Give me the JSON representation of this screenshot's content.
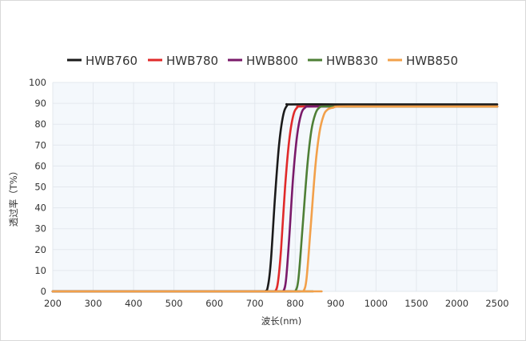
{
  "chart_data": {
    "type": "line",
    "title": "",
    "xlabel": "波长(nm)",
    "ylabel": "透过率（T%）",
    "x_ticks": [
      "200",
      "300",
      "400",
      "500",
      "600",
      "700",
      "800",
      "900",
      "1000",
      "1500",
      "2000",
      "2500"
    ],
    "x_tick_values": [
      200,
      300,
      400,
      500,
      600,
      700,
      800,
      900,
      1000,
      1500,
      2000,
      2500
    ],
    "y_ticks": [
      "0",
      "10",
      "20",
      "30",
      "40",
      "50",
      "60",
      "70",
      "80",
      "90",
      "100"
    ],
    "ylim": [
      0,
      100
    ],
    "grid": true,
    "legend_position": "top",
    "plot_background": "#f4f8fc",
    "series": [
      {
        "name": "HWB760",
        "color": "#1a1a1a",
        "points": [
          [
            200,
            0
          ],
          [
            700,
            0
          ],
          [
            725,
            0
          ],
          [
            733,
            3
          ],
          [
            740,
            15
          ],
          [
            750,
            45
          ],
          [
            760,
            70
          ],
          [
            770,
            84
          ],
          [
            780,
            89
          ],
          [
            790,
            89.5
          ],
          [
            900,
            89.5
          ],
          [
            1000,
            89.5
          ],
          [
            2500,
            89.5
          ]
        ]
      },
      {
        "name": "HWB780",
        "color": "#e02a2a",
        "points": [
          [
            200,
            0
          ],
          [
            745,
            0
          ],
          [
            750,
            0
          ],
          [
            757,
            4
          ],
          [
            765,
            20
          ],
          [
            775,
            50
          ],
          [
            785,
            72
          ],
          [
            795,
            84
          ],
          [
            805,
            88
          ],
          [
            815,
            88.5
          ],
          [
            900,
            88.5
          ],
          [
            1000,
            88.5
          ],
          [
            2500,
            88.5
          ]
        ]
      },
      {
        "name": "HWB800",
        "color": "#7a1a6a",
        "points": [
          [
            200,
            0
          ],
          [
            765,
            0
          ],
          [
            770,
            0
          ],
          [
            777,
            5
          ],
          [
            785,
            25
          ],
          [
            795,
            55
          ],
          [
            805,
            75
          ],
          [
            815,
            85
          ],
          [
            825,
            88
          ],
          [
            835,
            88.5
          ],
          [
            900,
            88.5
          ],
          [
            1000,
            88.5
          ],
          [
            2500,
            88.5
          ]
        ]
      },
      {
        "name": "HWB830",
        "color": "#4e7f36",
        "points": [
          [
            200,
            0
          ],
          [
            795,
            0
          ],
          [
            800,
            0
          ],
          [
            808,
            6
          ],
          [
            818,
            30
          ],
          [
            830,
            60
          ],
          [
            840,
            77
          ],
          [
            850,
            85
          ],
          [
            860,
            88
          ],
          [
            870,
            88.5
          ],
          [
            900,
            88.5
          ],
          [
            1000,
            88.5
          ],
          [
            2500,
            88.5
          ]
        ]
      },
      {
        "name": "HWB850",
        "color": "#f2a04a",
        "points": [
          [
            200,
            0
          ],
          [
            815,
            0
          ],
          [
            820,
            0
          ],
          [
            828,
            6
          ],
          [
            838,
            30
          ],
          [
            850,
            60
          ],
          [
            860,
            76
          ],
          [
            870,
            84
          ],
          [
            880,
            87
          ],
          [
            895,
            88
          ],
          [
            910,
            88.5
          ],
          [
            1000,
            88.5
          ],
          [
            2500,
            88.5
          ]
        ]
      }
    ]
  }
}
